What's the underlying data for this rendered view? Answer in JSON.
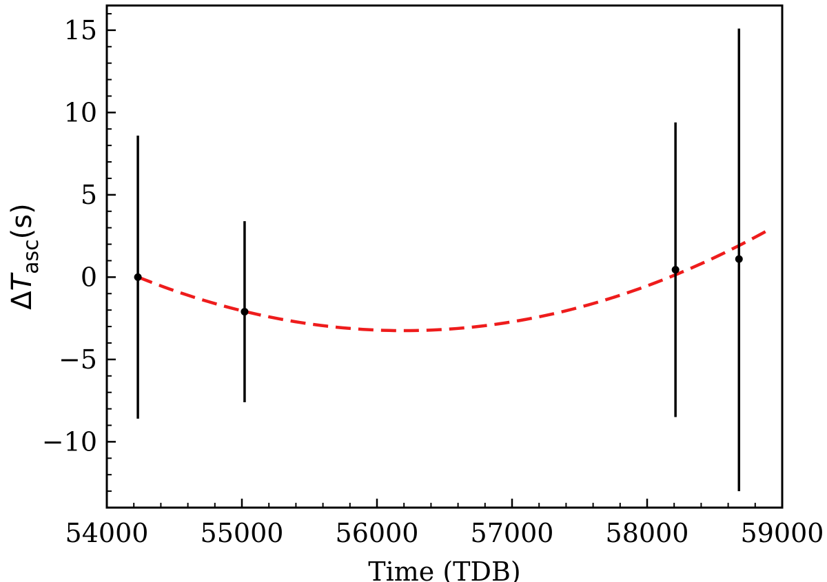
{
  "chart_data": {
    "type": "scatter",
    "xlabel": "Time (TDB)",
    "ylabel": {
      "prefix": "Δ",
      "symbol": "T",
      "subscript": "asc",
      "unit": "(s)"
    },
    "xlim": [
      54000,
      59000
    ],
    "ylim": [
      -14,
      16.5
    ],
    "x_ticks": [
      54000,
      55000,
      56000,
      57000,
      58000,
      59000
    ],
    "y_ticks": [
      15,
      10,
      5,
      0,
      -5,
      -10
    ],
    "y_tick_labels": [
      "15",
      "10",
      "5",
      "0",
      "−5",
      "−10"
    ],
    "x_minor_step": 200,
    "y_minor_step": 1,
    "points": [
      {
        "x": 54230,
        "y": 0.0,
        "yerr_low": -8.6,
        "yerr_high": 8.6
      },
      {
        "x": 55020,
        "y": -2.1,
        "yerr_low": -7.6,
        "yerr_high": 3.4
      },
      {
        "x": 58210,
        "y": 0.45,
        "yerr_low": -8.5,
        "yerr_high": 9.4
      },
      {
        "x": 58680,
        "y": 1.1,
        "yerr_low": -13.0,
        "yerr_high": 15.1
      }
    ],
    "fit": {
      "style": "dashed",
      "color": "#ee1c1c",
      "x_start": 54230,
      "x_end": 58880,
      "vertex_x": 56200,
      "vertex_y": -3.25,
      "curvature": 8.4e-07
    },
    "point_color": "#000000",
    "grid": false,
    "legend": "none"
  }
}
